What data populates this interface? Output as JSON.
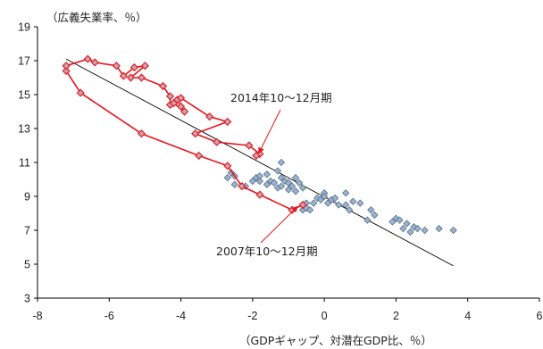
{
  "chart_data": {
    "type": "scatter",
    "ylabel": "（広義失業率、％）",
    "xlabel": "（GDPギャップ、対潜在GDP比、％）",
    "xlim": [
      -8,
      6
    ],
    "ylim": [
      3,
      19
    ],
    "xticks": [
      -8,
      -6,
      -4,
      -2,
      0,
      2,
      4,
      6
    ],
    "yticks": [
      3,
      5,
      7,
      9,
      11,
      13,
      15,
      17,
      19
    ],
    "grid": false,
    "legend": "none",
    "colors": {
      "scatter_fill": "#9db3cc",
      "scatter_stroke": "#55708f",
      "path_line": "#e8141b",
      "path_marker_fill": "#c8a4b0",
      "path_marker_stroke": "#e8141b",
      "trend_line": "#000000"
    },
    "annotations": [
      {
        "text": "2014年10〜12月期",
        "point": [
          -1.9,
          11.4
        ]
      },
      {
        "text": "2007年10〜12月期",
        "point": [
          -0.6,
          8.5
        ]
      }
    ],
    "trend_line": {
      "x": [
        -7.2,
        3.6
      ],
      "y": [
        17.1,
        4.9
      ]
    },
    "series": [
      {
        "kind": "scatter",
        "points": [
          [
            -2.7,
            10.1
          ],
          [
            -2.6,
            10.4
          ],
          [
            -2.5,
            9.7
          ],
          [
            -2.5,
            10.2
          ],
          [
            -2.2,
            9.6
          ],
          [
            -2.0,
            9.9
          ],
          [
            -1.9,
            10.1
          ],
          [
            -1.8,
            9.9
          ],
          [
            -1.8,
            10.2
          ],
          [
            -1.6,
            9.7
          ],
          [
            -1.6,
            10.3
          ],
          [
            -1.5,
            9.9
          ],
          [
            -1.4,
            9.8
          ],
          [
            -1.3,
            10.5
          ],
          [
            -1.3,
            9.5
          ],
          [
            -1.2,
            9.6
          ],
          [
            -1.2,
            10.1
          ],
          [
            -1.2,
            11.0
          ],
          [
            -1.1,
            9.9
          ],
          [
            -1.0,
            9.4
          ],
          [
            -1.0,
            9.8
          ],
          [
            -0.9,
            9.6
          ],
          [
            -0.8,
            10.1
          ],
          [
            -0.8,
            9.3
          ],
          [
            -0.7,
            9.8
          ],
          [
            -0.6,
            9.5
          ],
          [
            -0.6,
            8.2
          ],
          [
            -0.5,
            8.6
          ],
          [
            -0.5,
            8.3
          ],
          [
            -0.4,
            8.2
          ],
          [
            -0.3,
            8.6
          ],
          [
            -0.2,
            8.9
          ],
          [
            -0.1,
            8.8
          ],
          [
            0.0,
            9.2
          ],
          [
            0.0,
            9.0
          ],
          [
            0.1,
            8.6
          ],
          [
            0.2,
            8.8
          ],
          [
            0.3,
            8.9
          ],
          [
            0.4,
            8.5
          ],
          [
            0.6,
            9.2
          ],
          [
            0.6,
            8.5
          ],
          [
            0.7,
            8.2
          ],
          [
            0.8,
            8.7
          ],
          [
            1.0,
            8.6
          ],
          [
            1.2,
            7.6
          ],
          [
            1.3,
            8.2
          ],
          [
            1.4,
            7.9
          ],
          [
            1.9,
            7.5
          ],
          [
            2.0,
            7.7
          ],
          [
            2.1,
            7.6
          ],
          [
            2.2,
            7.1
          ],
          [
            2.3,
            7.4
          ],
          [
            2.4,
            6.9
          ],
          [
            2.5,
            7.2
          ],
          [
            2.6,
            7.1
          ],
          [
            2.8,
            7.0
          ],
          [
            3.2,
            7.1
          ],
          [
            3.6,
            7.0
          ]
        ]
      },
      {
        "kind": "path",
        "points": [
          [
            -0.6,
            8.5
          ],
          [
            -0.9,
            8.2
          ],
          [
            -1.8,
            9.1
          ],
          [
            -2.3,
            9.6
          ],
          [
            -2.7,
            10.8
          ],
          [
            -3.5,
            11.4
          ],
          [
            -5.1,
            12.7
          ],
          [
            -6.8,
            15.1
          ],
          [
            -7.2,
            16.4
          ],
          [
            -7.2,
            16.7
          ],
          [
            -6.6,
            17.1
          ],
          [
            -6.4,
            16.9
          ],
          [
            -5.8,
            16.7
          ],
          [
            -5.6,
            16.1
          ],
          [
            -5.3,
            16.6
          ],
          [
            -5.0,
            16.7
          ],
          [
            -5.4,
            16.0
          ],
          [
            -5.1,
            16.0
          ],
          [
            -4.5,
            15.5
          ],
          [
            -4.3,
            14.9
          ],
          [
            -4.3,
            14.4
          ],
          [
            -4.1,
            14.7
          ],
          [
            -4.0,
            14.3
          ],
          [
            -3.9,
            14.0
          ],
          [
            -4.2,
            14.5
          ],
          [
            -4.0,
            14.8
          ],
          [
            -3.2,
            13.7
          ],
          [
            -2.7,
            13.4
          ],
          [
            -3.6,
            12.7
          ],
          [
            -3.0,
            12.2
          ],
          [
            -2.1,
            12.0
          ],
          [
            -1.8,
            11.5
          ],
          [
            -1.9,
            11.4
          ]
        ]
      }
    ]
  }
}
